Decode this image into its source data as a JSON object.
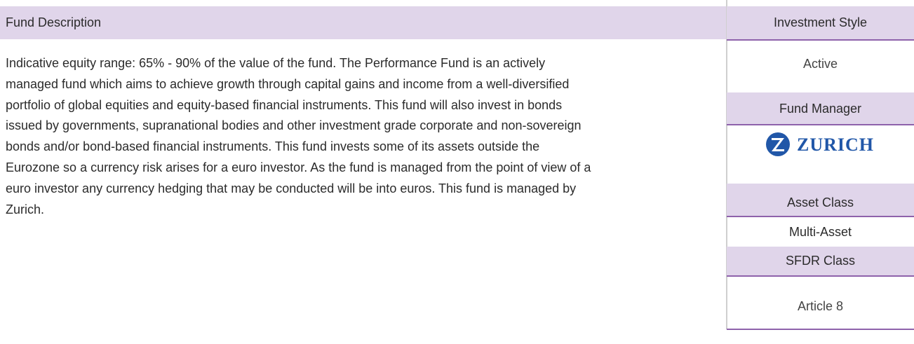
{
  "left": {
    "header": "Fund Description",
    "description": "Indicative equity range: 65% - 90% of the value of the fund. The Performance Fund is an actively managed fund which aims to achieve growth through capital gains and income from a well-diversified portfolio of global equities and equity-based financial instruments.  This fund will also invest in bonds issued by governments, supranational bodies and other investment grade corporate and non-sovereign bonds and/or bond-based financial instruments. This fund invests some of its assets outside the Eurozone so a currency risk arises for a euro investor. As the fund is managed from the point of view of a euro investor any currency hedging that may be conducted will be into euros. This fund is managed by Zurich."
  },
  "right": [
    {
      "label": "Investment Style",
      "value": "Active"
    },
    {
      "label": "Fund Manager",
      "value": "ZURICH"
    },
    {
      "label": "Asset Class",
      "value": "Multi-Asset"
    },
    {
      "label": "SFDR Class",
      "value": "Article 8"
    }
  ]
}
